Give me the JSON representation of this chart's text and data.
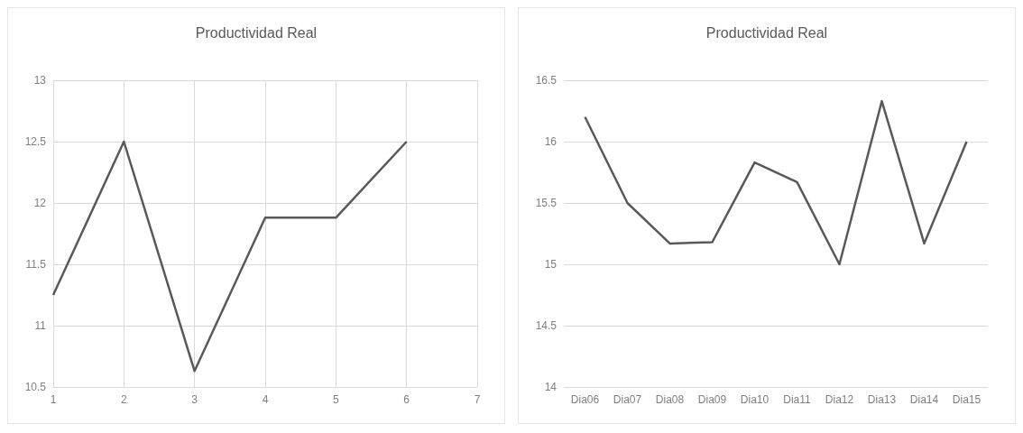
{
  "chart_data": [
    {
      "type": "line",
      "title": "Productividad Real",
      "x": [
        1,
        2,
        3,
        4,
        5,
        6
      ],
      "values": [
        11.25,
        12.5,
        10.63,
        11.88,
        11.88,
        12.5
      ],
      "color": "#595959",
      "xlim": [
        1,
        7
      ],
      "xticks": [
        1,
        2,
        3,
        4,
        5,
        6,
        7
      ],
      "ylim": [
        10.5,
        13
      ],
      "yticks": [
        10.5,
        11,
        11.5,
        12,
        12.5,
        13
      ],
      "grid": true,
      "marker": "none"
    },
    {
      "type": "line",
      "title": "Productividad Real",
      "categories": [
        "Dia06",
        "Dia07",
        "Dia08",
        "Dia09",
        "Dia10",
        "Dia11",
        "Dia12",
        "Dia13",
        "Dia14",
        "Dia15"
      ],
      "values": [
        16.2,
        15.5,
        15.17,
        15.18,
        15.83,
        15.67,
        15.0,
        16.33,
        15.17,
        16.0
      ],
      "color": "#595959",
      "ylim": [
        14,
        16.5
      ],
      "yticks": [
        14,
        14.5,
        15,
        15.5,
        16,
        16.5
      ],
      "grid": "y",
      "marker": "none"
    }
  ]
}
